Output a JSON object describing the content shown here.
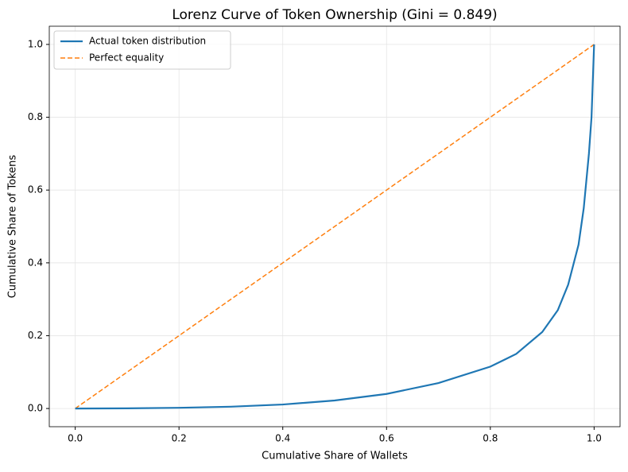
{
  "chart_data": {
    "type": "line",
    "title": "Lorenz Curve of Token Ownership (Gini = 0.849)",
    "xlabel": "Cumulative Share of Wallets",
    "ylabel": "Cumulative Share of Tokens",
    "x": [
      0,
      0.1,
      0.2,
      0.3,
      0.4,
      0.5,
      0.6,
      0.7,
      0.8,
      0.85,
      0.9,
      0.93,
      0.95,
      0.97,
      0.98,
      0.99,
      0.995,
      1.0
    ],
    "series": [
      {
        "name": "Actual token distribution",
        "color": "#1f77b4",
        "dash": false,
        "values": [
          0,
          0.0005,
          0.002,
          0.005,
          0.011,
          0.022,
          0.04,
          0.07,
          0.115,
          0.15,
          0.21,
          0.27,
          0.34,
          0.45,
          0.55,
          0.7,
          0.8,
          1.0
        ]
      },
      {
        "name": "Perfect equality",
        "color": "#ff7f0e",
        "dash": true,
        "values": [
          0,
          0.1,
          0.2,
          0.3,
          0.4,
          0.5,
          0.6,
          0.7,
          0.8,
          0.85,
          0.9,
          0.93,
          0.95,
          0.97,
          0.98,
          0.99,
          0.995,
          1.0
        ]
      }
    ],
    "xlim": [
      -0.05,
      1.05
    ],
    "ylim": [
      -0.05,
      1.05
    ],
    "xticks": [
      {
        "value": 0,
        "label": "0.0"
      },
      0.2,
      0.4,
      0.6,
      0.8,
      {
        "value": 1,
        "label": "1.0"
      }
    ],
    "yticks": [
      {
        "value": 0,
        "label": "0.0"
      },
      0.2,
      0.4,
      0.6,
      0.8,
      {
        "value": 1,
        "label": "1.0"
      }
    ],
    "grid": true,
    "legend": "upper-left"
  }
}
